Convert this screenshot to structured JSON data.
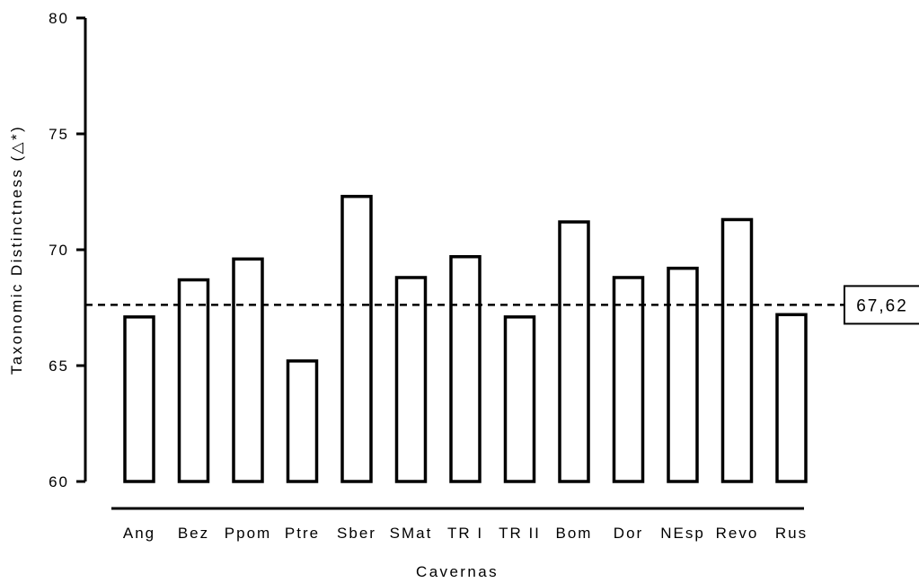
{
  "chart_data": {
    "type": "bar",
    "title": "",
    "xlabel": "Cavernas",
    "ylabel": "Taxonomic Distinctness (△*)",
    "categories": [
      "Ang",
      "Bez",
      "Ppom",
      "Ptre",
      "Sber",
      "SMat",
      "TR I",
      "TR II",
      "Bom",
      "Dor",
      "NEsp",
      "Revo",
      "Rus"
    ],
    "values": [
      67.1,
      68.7,
      69.6,
      65.2,
      72.3,
      68.8,
      69.7,
      67.1,
      71.2,
      68.8,
      69.2,
      71.3,
      67.2
    ],
    "ylim": [
      60,
      80
    ],
    "yticks": [
      60,
      65,
      70,
      75,
      80
    ],
    "ytick_labels": [
      "60",
      "65",
      "70",
      "75",
      "80"
    ],
    "reference_line": {
      "value": 67.62,
      "label": "67,62",
      "style": "dashed"
    },
    "bar_fill": "#ffffff",
    "bar_stroke": "#000000",
    "grid": false,
    "legend": "none"
  }
}
